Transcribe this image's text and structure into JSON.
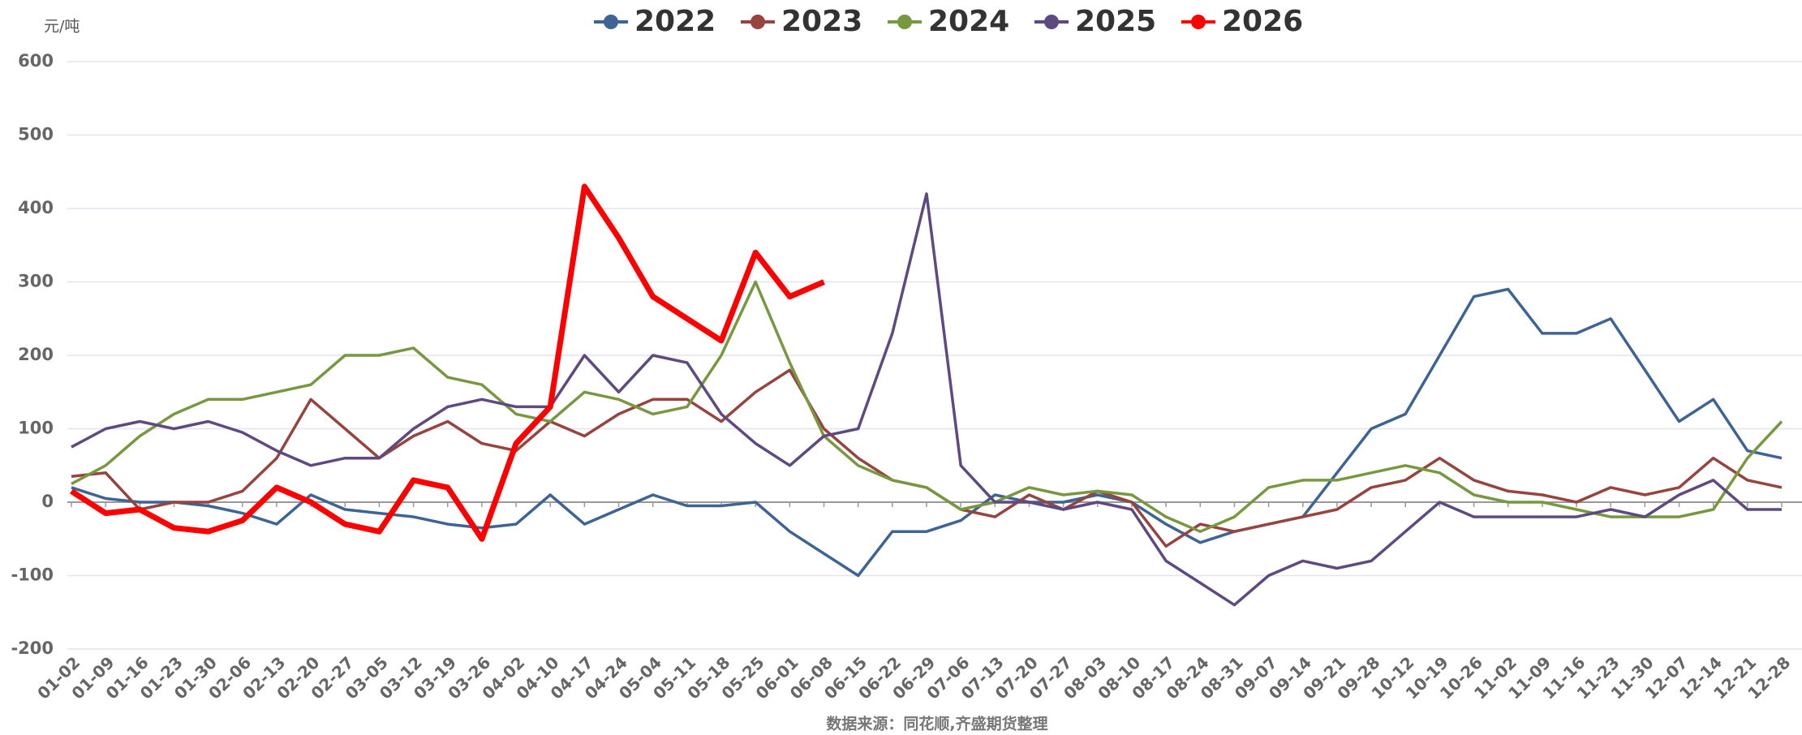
{
  "chart_data": {
    "type": "line",
    "y_label": "元/吨",
    "source": "数据来源：同花顺,齐盛期货整理",
    "categories": [
      "01-02",
      "01-09",
      "01-16",
      "01-23",
      "01-30",
      "02-06",
      "02-13",
      "02-20",
      "02-27",
      "03-05",
      "03-12",
      "03-19",
      "03-26",
      "04-02",
      "04-10",
      "04-17",
      "04-24",
      "05-04",
      "05-11",
      "05-18",
      "05-25",
      "06-01",
      "06-08",
      "06-15",
      "06-22",
      "06-29",
      "07-06",
      "07-13",
      "07-20",
      "07-27",
      "08-03",
      "08-10",
      "08-17",
      "08-24",
      "08-31",
      "09-07",
      "09-14",
      "09-21",
      "09-28",
      "10-12",
      "10-19",
      "10-26",
      "11-02",
      "11-09",
      "11-16",
      "11-23",
      "11-30",
      "12-07",
      "12-14",
      "12-21",
      "12-28"
    ],
    "series": [
      {
        "name": "2022",
        "color": "#3d6495",
        "values": [
          20,
          5,
          0,
          0,
          -5,
          -15,
          -30,
          10,
          -10,
          -15,
          -20,
          -30,
          -35,
          -30,
          10,
          -30,
          -10,
          10,
          -5,
          -5,
          0,
          -40,
          -70,
          -100,
          -40,
          -40,
          -25,
          10,
          0,
          0,
          10,
          0,
          -30,
          -55,
          -40,
          -30,
          -20,
          40,
          100,
          120,
          200,
          280,
          290,
          230,
          230,
          250,
          180,
          110,
          140,
          70,
          60
        ]
      },
      {
        "name": "2023",
        "color": "#97433e",
        "values": [
          35,
          40,
          -10,
          0,
          0,
          15,
          60,
          140,
          100,
          60,
          90,
          110,
          80,
          70,
          110,
          90,
          120,
          140,
          140,
          110,
          150,
          180,
          100,
          60,
          30,
          20,
          -10,
          -20,
          10,
          -10,
          15,
          0,
          -60,
          -30,
          -40,
          -30,
          -20,
          -10,
          20,
          30,
          60,
          30,
          15,
          10,
          0,
          20,
          10,
          20,
          60,
          30,
          20
        ]
      },
      {
        "name": "2024",
        "color": "#77983f",
        "values": [
          25,
          50,
          90,
          120,
          140,
          140,
          150,
          160,
          200,
          200,
          210,
          170,
          160,
          120,
          110,
          150,
          140,
          120,
          130,
          200,
          300,
          190,
          90,
          50,
          30,
          20,
          -10,
          0,
          20,
          10,
          15,
          10,
          -20,
          -40,
          -20,
          20,
          30,
          30,
          40,
          50,
          40,
          10,
          0,
          0,
          -10,
          -20,
          -20,
          -20,
          -10,
          60,
          110
        ]
      },
      {
        "name": "2025",
        "color": "#5e4a80",
        "values": [
          75,
          100,
          110,
          100,
          110,
          95,
          70,
          50,
          60,
          60,
          100,
          130,
          140,
          130,
          130,
          200,
          150,
          200,
          190,
          120,
          80,
          50,
          90,
          100,
          230,
          420,
          50,
          0,
          0,
          -10,
          0,
          -10,
          -80,
          -110,
          -140,
          -100,
          -80,
          -90,
          -80,
          -40,
          0,
          -20,
          -20,
          -20,
          -20,
          -10,
          -20,
          10,
          30,
          -10,
          -10
        ]
      },
      {
        "name": "2026",
        "color": "#ff0000",
        "values": [
          15,
          -15,
          -10,
          -35,
          -40,
          -25,
          20,
          0,
          -30,
          -40,
          30,
          20,
          -50,
          80,
          130,
          430,
          360,
          280,
          250,
          220,
          340,
          280,
          300,
          null,
          null,
          null,
          null,
          null,
          null,
          null,
          null,
          null,
          null,
          null,
          null,
          null,
          null,
          null,
          null,
          null,
          null,
          null,
          null,
          null,
          null,
          null,
          null,
          null,
          null,
          null,
          null
        ]
      }
    ],
    "ylim": [
      -200,
      600
    ],
    "yticks": [
      -200,
      -100,
      0,
      100,
      200,
      300,
      400,
      500,
      600
    ],
    "grid": true
  }
}
